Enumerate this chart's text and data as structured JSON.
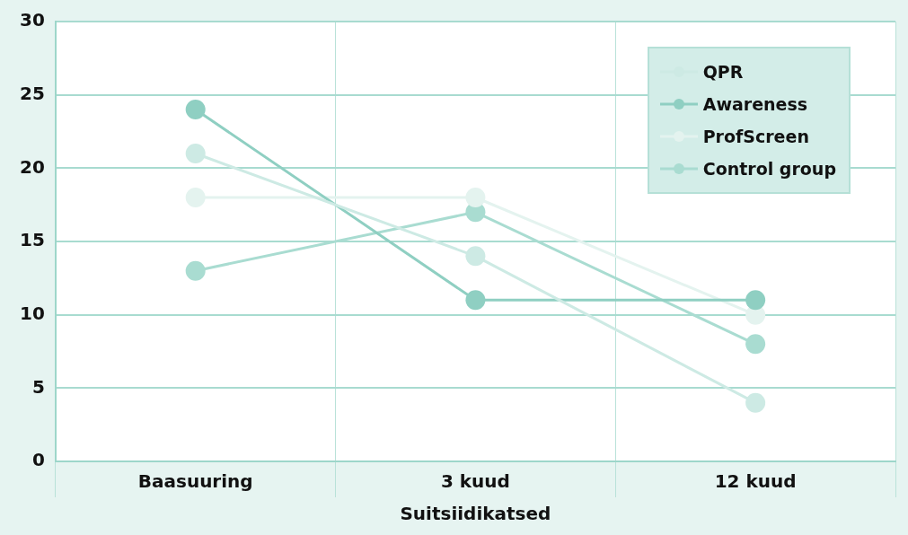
{
  "chart_data": {
    "type": "line",
    "xlabel": "Suitsiidikatsed",
    "categories": [
      "Baasuuring",
      "3 kuud",
      "12 kuud"
    ],
    "series": [
      {
        "name": "QPR",
        "color": "#cdeae4",
        "values": [
          21,
          14,
          4
        ]
      },
      {
        "name": "Awareness",
        "color": "#8fcfc2",
        "values": [
          24,
          11,
          11
        ]
      },
      {
        "name": "ProfScreen",
        "color": "#e4f3ef",
        "values": [
          18,
          18,
          10
        ]
      },
      {
        "name": "Control group",
        "color": "#a9dcd1",
        "values": [
          13,
          17,
          8
        ]
      }
    ],
    "ylim": [
      0,
      30
    ],
    "yticks": [
      0,
      5,
      10,
      15,
      20,
      25,
      30
    ],
    "grid": "y",
    "legend": "top right",
    "marker": "circle",
    "line_style": "solid"
  }
}
